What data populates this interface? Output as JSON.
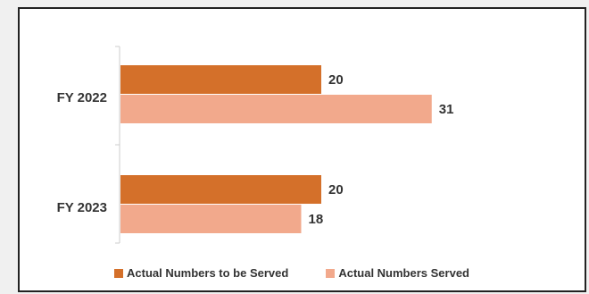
{
  "chart_data": {
    "type": "bar",
    "orientation": "horizontal",
    "categories": [
      "FY 2022",
      "FY 2023"
    ],
    "series": [
      {
        "name": "Actual Numbers to be Served",
        "values": [
          20,
          20
        ],
        "color": "#d4702a"
      },
      {
        "name": "Actual Numbers Served",
        "values": [
          31,
          18
        ],
        "color": "#f2a98c"
      }
    ],
    "xlim": [
      0,
      35
    ],
    "grid": false,
    "legend_position": "bottom"
  }
}
